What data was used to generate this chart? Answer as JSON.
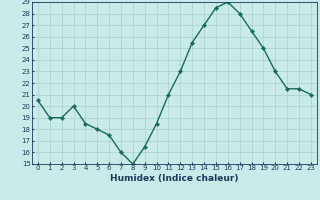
{
  "x": [
    0,
    1,
    2,
    3,
    4,
    5,
    6,
    7,
    8,
    9,
    10,
    11,
    12,
    13,
    14,
    15,
    16,
    17,
    18,
    19,
    20,
    21,
    22,
    23
  ],
  "y": [
    20.5,
    19.0,
    19.0,
    20.0,
    18.5,
    18.0,
    17.5,
    16.0,
    15.0,
    16.5,
    18.5,
    21.0,
    23.0,
    25.5,
    27.0,
    28.5,
    29.0,
    28.0,
    26.5,
    25.0,
    23.0,
    21.5,
    21.5,
    21.0
  ],
  "xlabel": "Humidex (Indice chaleur)",
  "ylim": [
    15,
    29
  ],
  "xlim": [
    -0.5,
    23.5
  ],
  "yticks": [
    15,
    16,
    17,
    18,
    19,
    20,
    21,
    22,
    23,
    24,
    25,
    26,
    27,
    28,
    29
  ],
  "xticks": [
    0,
    1,
    2,
    3,
    4,
    5,
    6,
    7,
    8,
    9,
    10,
    11,
    12,
    13,
    14,
    15,
    16,
    17,
    18,
    19,
    20,
    21,
    22,
    23
  ],
  "line_color": "#1a6b5a",
  "marker_color": "#1a6b5a",
  "bg_color": "#c8eae8",
  "grid_color": "#a8cece",
  "tick_label_fontsize": 5.0,
  "xlabel_fontsize": 6.5,
  "line_width": 1.0,
  "marker_size": 2.2
}
